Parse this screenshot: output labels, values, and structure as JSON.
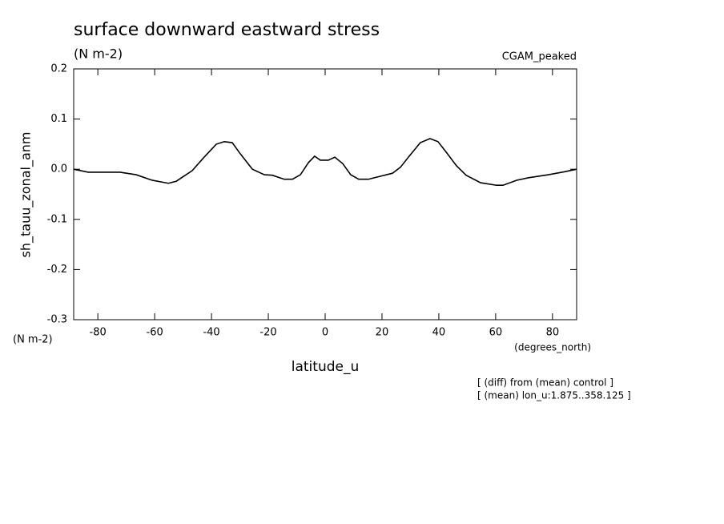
{
  "chart_data": {
    "type": "line",
    "title": "surface downward eastward stress",
    "subtitle": "(N m-2)",
    "dataset_label": "CGAM_peaked",
    "ylabel": "sh_tauu_zonal_anm",
    "y_units": "(N m-2)",
    "xlabel": "latitude_u",
    "x_units": "(degrees_north)",
    "notes": [
      "[ (diff) from (mean) control ]",
      "[ (mean) lon_u:1.875..358.125 ]"
    ],
    "xlim": [
      -88.5,
      88.5
    ],
    "xticks": [
      -80,
      -60,
      -40,
      -20,
      0,
      20,
      40,
      60,
      80
    ],
    "ylim": [
      -0.3,
      0.2
    ],
    "yticks": [
      0.2,
      0.1,
      {
        "value": 0,
        "label": "0.0"
      },
      -0.1,
      -0.2,
      -0.3
    ],
    "x": [
      -88.5,
      -83.4,
      -72.2,
      -66.5,
      -60.9,
      -55.2,
      -52.4,
      -46.8,
      -42.6,
      -38.3,
      -35.5,
      -32.7,
      -29.9,
      -25.6,
      -21.4,
      -18.6,
      -14.4,
      -11.5,
      -8.7,
      -5.9,
      -3.7,
      -1.7,
      1.1,
      3.4,
      6.2,
      9.0,
      11.8,
      15.2,
      19.4,
      23.7,
      26.5,
      29.3,
      33.5,
      36.9,
      39.7,
      42.6,
      46.2,
      49.6,
      54.7,
      60.3,
      62.6,
      67.4,
      71.6,
      78.6,
      84.3,
      88.5
    ],
    "series": [
      {
        "name": "sh_tauu_zonal_anm",
        "color": "#000000",
        "values": [
          0.0,
          -0.006,
          -0.006,
          -0.011,
          -0.022,
          -0.028,
          -0.024,
          -0.003,
          0.024,
          0.05,
          0.055,
          0.053,
          0.031,
          0.0,
          -0.011,
          -0.012,
          -0.02,
          -0.02,
          -0.011,
          0.013,
          0.026,
          0.018,
          0.018,
          0.024,
          0.011,
          -0.011,
          -0.02,
          -0.02,
          -0.014,
          -0.008,
          0.004,
          0.024,
          0.053,
          0.061,
          0.055,
          0.034,
          0.007,
          -0.012,
          -0.027,
          -0.032,
          -0.032,
          -0.022,
          -0.017,
          -0.011,
          -0.005,
          0.0
        ]
      }
    ]
  }
}
